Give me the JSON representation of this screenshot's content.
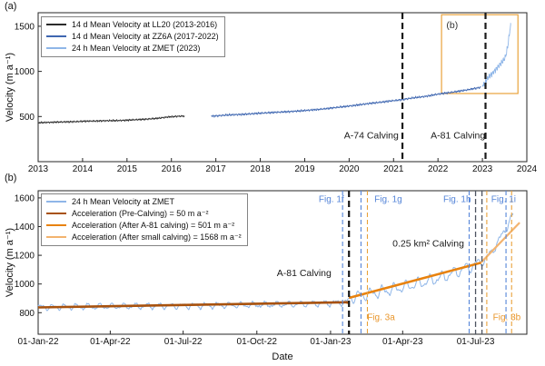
{
  "chart_data": [
    {
      "type": "line",
      "panel": "a",
      "panel_label": "(a)",
      "ylabel": "Velocity (m a⁻¹)",
      "xlabel": "",
      "grid": false,
      "legend_position": "top-left",
      "xlim": [
        2013,
        2024
      ],
      "ylim": [
        0,
        1650
      ],
      "xticks": [
        2013,
        2014,
        2015,
        2016,
        2017,
        2018,
        2019,
        2020,
        2021,
        2022,
        2023,
        2024
      ],
      "xtick_labels": [
        "2013",
        "2014",
        "2015",
        "2016",
        "2017",
        "2018",
        "2019",
        "2020",
        "2021",
        "2022",
        "2023",
        "2024"
      ],
      "yticks": [
        500,
        1000,
        1500
      ],
      "ytick_labels": [
        "500",
        "1000",
        "1500"
      ],
      "series": [
        {
          "name": "14 d Mean Velocity at LL20 (2013-2016)",
          "color": "#2b2b2b",
          "width": 0.9,
          "step": 0.008,
          "x": [
            2013.0,
            2013.3,
            2013.6,
            2013.9,
            2014.2,
            2014.5,
            2014.8,
            2015.1,
            2015.4,
            2015.7,
            2015.95,
            2016.15,
            2016.3
          ],
          "y": [
            432,
            436,
            441,
            444,
            450,
            453,
            455,
            462,
            470,
            480,
            497,
            503,
            505
          ],
          "osc": {
            "period": 0.0403,
            "segments": [
              {
                "t0": 2013.0,
                "t1": 2016.3,
                "amp": 7
              }
            ]
          },
          "noise": 6,
          "noise_freq": 700
        },
        {
          "name": "14 d Mean Velocity at ZZ6A (2017-2022)",
          "color": "#3f67b1",
          "width": 0.9,
          "step": 0.008,
          "x": [
            2016.9,
            2017.2,
            2017.5,
            2017.8,
            2018.1,
            2018.4,
            2018.7,
            2019.0,
            2019.3,
            2019.6,
            2019.9,
            2020.2,
            2020.5,
            2020.8,
            2021.1,
            2021.4,
            2021.7,
            2022.0,
            2022.3,
            2022.6,
            2022.9,
            2022.97
          ],
          "y": [
            505,
            514,
            522,
            530,
            540,
            548,
            556,
            566,
            578,
            594,
            610,
            628,
            648,
            663,
            682,
            703,
            722,
            748,
            768,
            790,
            818,
            825
          ],
          "osc": {
            "period": 0.0403,
            "segments": [
              {
                "t0": 2016.9,
                "t1": 2022.97,
                "amp": 8
              }
            ]
          },
          "noise": 7,
          "noise_freq": 700
        },
        {
          "name": "24 h Mean Velocity at ZMET (2023)",
          "color": "#8fb6e8",
          "width": 0.9,
          "step": 0.003,
          "x": [
            2023.0,
            2023.05,
            2023.08,
            2023.12,
            2023.2,
            2023.3,
            2023.4,
            2023.5,
            2023.54,
            2023.58,
            2023.61,
            2023.64
          ],
          "y": [
            848,
            858,
            890,
            928,
            965,
            1020,
            1080,
            1140,
            1200,
            1310,
            1430,
            1520
          ],
          "osc": {
            "period": 0.0403,
            "segments": [
              {
                "t0": 2023.0,
                "t1": 2023.64,
                "amp": 25
              }
            ]
          },
          "noise": 8,
          "noise_freq": 700
        }
      ],
      "events": [
        {
          "name": "a74-calving-line",
          "x": 2021.2,
          "color": "#1a1a1a",
          "width": 2.2,
          "dash": "7,4"
        },
        {
          "name": "a81-calving-line",
          "x": 2023.07,
          "color": "#1a1a1a",
          "width": 2.2,
          "dash": "7,4"
        }
      ],
      "annotations": [
        {
          "text": "A-74 Calving",
          "x": 2020.5,
          "y": 255,
          "color": "#1a1a1a",
          "size": 10.5
        },
        {
          "text": "A-81 Calving",
          "x": 2022.45,
          "y": 255,
          "color": "#1a1a1a",
          "size": 10.5
        },
        {
          "text": "(b)",
          "x": 2022.32,
          "y": 1480,
          "color": "#333333",
          "size": 10.5
        }
      ],
      "inset_box": {
        "x0": 2022.08,
        "x1": 2023.8,
        "y0": 755,
        "y1": 1628,
        "color": "#e9a23b"
      }
    },
    {
      "type": "line",
      "panel": "b",
      "panel_label": "(b)",
      "ylabel": "Velocity (m a⁻¹)",
      "xlabel": "Date",
      "grid": false,
      "legend_position": "top-left",
      "xlim": [
        0,
        610
      ],
      "ylim": [
        650,
        1650
      ],
      "xticks": [
        0,
        90,
        181,
        273,
        365,
        455,
        546
      ],
      "xtick_labels": [
        "01-Jan-22",
        "01-Apr-22",
        "01-Jul-22",
        "01-Oct-22",
        "01-Jan-23",
        "01-Apr-23",
        "01-Jul-23"
      ],
      "yticks": [
        800,
        1000,
        1200,
        1400,
        1600
      ],
      "ytick_labels": [
        "800",
        "1000",
        "1200",
        "1400",
        "1600"
      ],
      "series": [
        {
          "name": "24 h Mean Velocity at ZMET",
          "color": "#8fb6e8",
          "width": 1,
          "step": 0.8,
          "x": [
            0,
            40,
            80,
            120,
            160,
            200,
            240,
            280,
            320,
            360,
            386,
            390,
            400,
            420,
            440,
            460,
            480,
            500,
            520,
            540,
            552,
            558,
            566,
            575,
            584,
            593
          ],
          "y": [
            838,
            841,
            843,
            845,
            847,
            849,
            852,
            855,
            859,
            866,
            872,
            905,
            918,
            938,
            960,
            984,
            1010,
            1040,
            1080,
            1122,
            1148,
            1168,
            1225,
            1300,
            1390,
            1480
          ],
          "osc": {
            "period": 14.7,
            "segments": [
              {
                "t0": 0,
                "t1": 386,
                "amp": 22
              },
              {
                "t0": 386,
                "t1": 552,
                "amp": 42
              },
              {
                "t0": 552,
                "t1": 593,
                "amp": 30
              }
            ]
          },
          "noise": 6,
          "noise_freq": 2.1
        },
        {
          "name": "Acceleration (Pre-Calving) = 50 m a⁻²",
          "color": "#a8520e",
          "width": 2.6,
          "render": "trend",
          "x": [
            0,
            388
          ],
          "y": [
            837,
            873
          ]
        },
        {
          "name": "Acceleration (After A-81 calving) = 501 m a⁻²",
          "color": "#e8820e",
          "width": 2.6,
          "render": "trend",
          "x": [
            388,
            553
          ],
          "y": [
            903,
            1148
          ]
        },
        {
          "name": "Acceleration (After small calving) = 1568 m a⁻²",
          "color": "#f3b36f",
          "width": 2.2,
          "render": "trend",
          "x": [
            553,
            601
          ],
          "y": [
            1150,
            1428
          ]
        }
      ],
      "events": [
        {
          "name": "fig-1f-line",
          "x": 380,
          "color": "#5585d8",
          "width": 1.1,
          "dash": "5,3"
        },
        {
          "name": "a81-calving-line",
          "x": 388,
          "color": "#1a1a1a",
          "width": 2.2,
          "dash": "7,4"
        },
        {
          "name": "fig-1g-line",
          "x": 403,
          "color": "#5585d8",
          "width": 1.1,
          "dash": "5,3"
        },
        {
          "name": "fig-3a-line",
          "x": 411,
          "color": "#e9a23b",
          "width": 1.1,
          "dash": "5,3"
        },
        {
          "name": "fig-1h-line",
          "x": 538,
          "color": "#5585d8",
          "width": 1.1,
          "dash": "5,3"
        },
        {
          "name": "small-calving-line-1",
          "x": 546,
          "color": "#4d5360",
          "width": 1.3,
          "dash": "6,3"
        },
        {
          "name": "small-calving-line-2",
          "x": 554,
          "color": "#4d5360",
          "width": 1.3,
          "dash": "6,3"
        },
        {
          "name": "fig-3b-line-left",
          "x": 560,
          "color": "#e9a23b",
          "width": 1.1,
          "dash": "5,3"
        },
        {
          "name": "fig-1i-line",
          "x": 584,
          "color": "#5585d8",
          "width": 1.1,
          "dash": "5,3"
        },
        {
          "name": "fig-3b-line",
          "x": 591,
          "color": "#e9a23b",
          "width": 1.1,
          "dash": "5,3"
        }
      ],
      "annotations": [
        {
          "text": "Fig. 1f",
          "x": 366,
          "y": 1572,
          "color": "#5585d8",
          "size": 10
        },
        {
          "text": "Fig. 1g",
          "x": 437,
          "y": 1572,
          "color": "#5585d8",
          "size": 10
        },
        {
          "text": "Fig. 1h",
          "x": 523,
          "y": 1572,
          "color": "#5585d8",
          "size": 10
        },
        {
          "text": "Fig. 1i",
          "x": 581,
          "y": 1572,
          "color": "#5585d8",
          "size": 10
        },
        {
          "text": "Fig. 3a",
          "x": 428,
          "y": 748,
          "color": "#e9962b",
          "size": 10
        },
        {
          "text": "Fig. 3b",
          "x": 585,
          "y": 748,
          "color": "#e9962b",
          "size": 10
        },
        {
          "text": "A-81 Calving",
          "x": 332,
          "y": 1055,
          "color": "#1a1a1a",
          "size": 10.5
        },
        {
          "text": "0.25 km² Calving",
          "x": 487,
          "y": 1262,
          "color": "#1a1a1a",
          "size": 10.5
        }
      ]
    }
  ]
}
